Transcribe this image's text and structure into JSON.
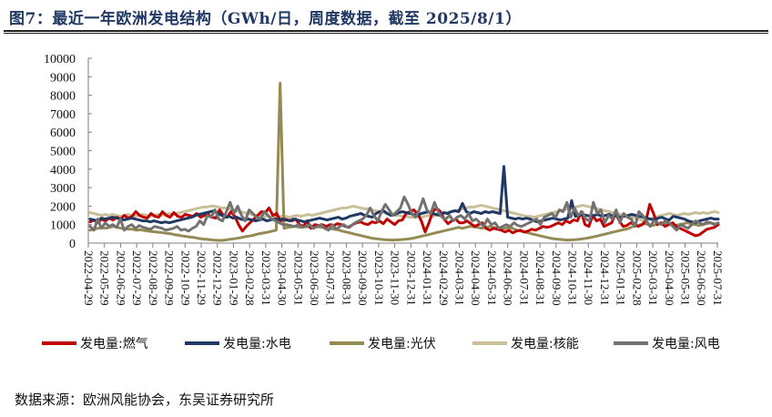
{
  "header": {
    "title": "图7：最近一年欧洲发电结构（GWh/日，周度数据，截至 2025/8/1）"
  },
  "source": {
    "text": "数据来源：欧洲风能协会，东吴证券研究所"
  },
  "chart_data": {
    "type": "line",
    "title": "最近一年欧洲发电结构（GWh/日，周度数据，截至 2025/8/1）",
    "xlabel": "",
    "ylabel": "GWh/日",
    "ylim": [
      0,
      10000
    ],
    "yticks": [
      0,
      1000,
      2000,
      3000,
      4000,
      5000,
      6000,
      7000,
      8000,
      9000,
      10000
    ],
    "grid": false,
    "legend_position": "bottom",
    "x_tick_labels": [
      "2022-04-29",
      "2022-05-29",
      "2022-06-29",
      "2022-07-29",
      "2022-08-29",
      "2022-09-29",
      "2022-10-29",
      "2022-11-29",
      "2022-12-29",
      "2023-01-29",
      "2023-02-28",
      "2023-03-31",
      "2023-04-30",
      "2023-05-31",
      "2023-06-30",
      "2023-07-31",
      "2023-08-31",
      "2023-09-30",
      "2023-10-31",
      "2023-11-30",
      "2023-12-31",
      "2024-01-31",
      "2024-02-29",
      "2024-03-31",
      "2024-04-30",
      "2024-05-31",
      "2024-06-30",
      "2024-07-31",
      "2024-08-31",
      "2024-09-30",
      "2024-10-31",
      "2024-11-30",
      "2024-12-31",
      "2025-01-31",
      "2025-02-28",
      "2025-03-31",
      "2025-04-30",
      "2025-05-31",
      "2025-06-30",
      "2025-07-31"
    ],
    "x_start": "2022-04-29",
    "x_end": "2025-08-01",
    "frequency": "weekly",
    "series": [
      {
        "name": "发电量:燃气",
        "color": "#c00000",
        "values": [
          1150,
          1250,
          1100,
          1300,
          1200,
          1350,
          1250,
          1400,
          1300,
          1500,
          1350,
          1450,
          1700,
          1500,
          1400,
          1350,
          1600,
          1450,
          1400,
          1700,
          1500,
          1400,
          1650,
          1450,
          1400,
          1550,
          1500,
          1450,
          1600,
          1400,
          1500,
          1550,
          1400,
          1350,
          1800,
          1500,
          1400,
          1700,
          1450,
          1000,
          650,
          900,
          1100,
          1300,
          1500,
          1700,
          1650,
          1900,
          1500,
          1600,
          1200,
          1300,
          1250,
          1200,
          1300,
          1000,
          900,
          1200,
          800,
          1000,
          950,
          1000,
          900,
          1000,
          950,
          1050,
          1000,
          900,
          850,
          1000,
          1100,
          1150,
          1050,
          1000,
          1150,
          1100,
          1200,
          1050,
          1300,
          1150,
          1000,
          1200,
          1250,
          1600,
          1700,
          1800,
          1600,
          1200,
          600,
          1100,
          1700,
          1900,
          1700,
          1300,
          1050,
          1200,
          1300,
          1100,
          1100,
          1200,
          1050,
          900,
          1000,
          1100,
          800,
          700,
          800,
          750,
          700,
          600,
          700,
          550,
          650,
          700,
          600,
          650,
          750,
          700,
          800,
          900,
          850,
          900,
          1000,
          1100,
          1000,
          1200,
          1100,
          1250,
          1200,
          1700,
          1000,
          900,
          1500,
          1200,
          1300,
          900,
          1000,
          1100,
          1600,
          1200,
          900,
          950,
          1100,
          1000,
          900,
          1000,
          1200,
          2100,
          1600,
          1000,
          1100,
          900,
          1000,
          1100,
          900,
          800,
          700,
          600,
          500,
          400,
          450,
          600,
          750,
          800,
          850,
          1000
        ],
        "label_note": "weekly values read approx. from plot"
      },
      {
        "name": "发电量:水电",
        "color": "#1f3864",
        "values": [
          1300,
          1250,
          1200,
          1350,
          1300,
          1350,
          1400,
          1350,
          1300,
          1250,
          1300,
          1350,
          1300,
          1250,
          1200,
          1200,
          1150,
          1200,
          1150,
          1100,
          1150,
          1100,
          1150,
          1200,
          1250,
          1300,
          1350,
          1400,
          1500,
          1550,
          1600,
          1650,
          1700,
          1750,
          1600,
          1500,
          1400,
          1450,
          1350,
          1400,
          1300,
          1250,
          1300,
          1250,
          1200,
          1250,
          1300,
          1200,
          1250,
          1300,
          1250,
          1300,
          1250,
          1200,
          1300,
          1250,
          1200,
          1150,
          1200,
          1250,
          1300,
          1350,
          1300,
          1250,
          1300,
          1350,
          1400,
          1300,
          1350,
          1450,
          1500,
          1550,
          1600,
          1500,
          1450,
          1400,
          1600,
          1700,
          1750,
          1600,
          1500,
          1550,
          1650,
          1700,
          1650,
          1600,
          1550,
          1500,
          1600,
          1650,
          1700,
          1600,
          1550,
          1500,
          1650,
          1600,
          1700,
          1750,
          1700,
          2150,
          1700,
          1600,
          1700,
          1650,
          1600,
          1700,
          1650,
          1700,
          1650,
          1600,
          4150,
          1400,
          1350,
          1300,
          1350,
          1300,
          1350,
          1300,
          1200,
          1150,
          1200,
          1250,
          1300,
          1350,
          1300,
          1250,
          1300,
          1350,
          2300,
          1450,
          1500,
          1550,
          1500,
          1450,
          1500,
          1550,
          1450,
          1500,
          1550,
          1450,
          1500,
          1400,
          1450,
          1500,
          1550,
          1500,
          1450,
          1400,
          1350,
          1300,
          1250,
          1350,
          1400,
          1300,
          1250,
          1450,
          1400,
          1350,
          1300,
          1200,
          1150,
          1100,
          1200,
          1250,
          1300,
          1350,
          1300,
          1300
        ],
        "label_note": "weekly values read approx. from plot"
      },
      {
        "name": "发电量:光伏",
        "color": "#948a54",
        "values": [
          700,
          750,
          800,
          850,
          800,
          850,
          900,
          850,
          800,
          780,
          760,
          750,
          700,
          720,
          680,
          650,
          620,
          600,
          580,
          550,
          520,
          500,
          450,
          420,
          380,
          350,
          320,
          300,
          250,
          220,
          200,
          180,
          160,
          150,
          150,
          170,
          200,
          230,
          260,
          300,
          350,
          380,
          420,
          480,
          520,
          560,
          600,
          650,
          700,
          8650,
          800,
          850,
          880,
          900,
          850,
          900,
          880,
          850,
          900,
          870,
          850,
          800,
          780,
          750,
          720,
          650,
          600,
          550,
          500,
          450,
          400,
          350,
          300,
          250,
          230,
          200,
          180,
          170,
          160,
          170,
          180,
          200,
          220,
          250,
          300,
          350,
          400,
          450,
          500,
          550,
          600,
          650,
          700,
          750,
          800,
          850,
          800,
          850,
          900,
          880,
          850,
          800,
          850,
          900,
          850,
          800,
          750,
          800,
          850,
          800,
          700,
          650,
          600,
          550,
          500,
          450,
          400,
          350,
          300,
          250,
          220,
          200,
          180,
          160,
          170,
          180,
          200,
          230,
          260,
          300,
          350,
          400,
          450,
          500,
          550,
          600,
          650,
          700,
          750,
          800,
          900,
          950,
          1000,
          1050,
          1000,
          950,
          1000,
          1050,
          1100,
          1050,
          1000,
          950,
          1000,
          1050,
          1100,
          1050,
          1000,
          950,
          1000,
          1050,
          1100,
          1050,
          1000
        ],
        "label_note": "weekly values read approx. from plot"
      },
      {
        "name": "发电量:核能",
        "color": "#c9bf99",
        "values": [
          1650,
          1600,
          1550,
          1500,
          1550,
          1500,
          1550,
          1500,
          1450,
          1500,
          1550,
          1500,
          1450,
          1500,
          1550,
          1500,
          1450,
          1500,
          1550,
          1500,
          1550,
          1600,
          1550,
          1600,
          1650,
          1700,
          1750,
          1800,
          1850,
          1900,
          1950,
          1950,
          2000,
          2000,
          1950,
          1900,
          1900,
          1850,
          1800,
          1750,
          1700,
          1650,
          1600,
          1550,
          1500,
          1500,
          1450,
          1450,
          1400,
          1450,
          1400,
          1450,
          1450,
          1400,
          1450,
          1500,
          1450,
          1500,
          1550,
          1500,
          1550,
          1600,
          1650,
          1700,
          1750,
          1800,
          1850,
          1900,
          1900,
          1950,
          2000,
          1950,
          1900,
          1850,
          1850,
          1800,
          1750,
          1700,
          1650,
          1600,
          1550,
          1500,
          1500,
          1450,
          1450,
          1400,
          1400,
          1450,
          1400,
          1450,
          1500,
          1450,
          1500,
          1550,
          1600,
          1650,
          1700,
          1750,
          1800,
          1850,
          1900,
          1950,
          1950,
          2000,
          2050,
          2000,
          1950,
          1900,
          1850,
          1800,
          1750,
          1700,
          1650,
          1600,
          1550,
          1500,
          1450,
          1450,
          1400,
          1450,
          1500,
          1550,
          1600,
          1650,
          1700,
          1750,
          1800,
          1850,
          1900,
          1950,
          2000,
          2050,
          2000,
          1950,
          1900,
          1850,
          1800,
          1750,
          1700,
          1650,
          1600,
          1550,
          1500,
          1450,
          1400,
          1350,
          1300,
          1200,
          1250,
          1300,
          1400,
          1450,
          1500,
          1550,
          1600,
          1550,
          1500,
          1550,
          1600,
          1550,
          1600,
          1650,
          1600,
          1650,
          1600,
          1650,
          1700,
          1650
        ],
        "label_note": "weekly values read approx. from plot"
      },
      {
        "name": "发电量:风电",
        "color": "#767171",
        "values": [
          900,
          700,
          1300,
          800,
          1100,
          900,
          1000,
          850,
          1300,
          700,
          900,
          1000,
          800,
          950,
          850,
          800,
          750,
          900,
          850,
          800,
          700,
          750,
          800,
          900,
          700,
          750,
          650,
          800,
          900,
          1200,
          1000,
          1500,
          1400,
          1800,
          1300,
          1200,
          1700,
          2200,
          1600,
          2000,
          1500,
          1200,
          1800,
          1600,
          1400,
          1300,
          1700,
          1500,
          1300,
          1200,
          1100,
          1000,
          1000,
          950,
          900,
          1000,
          850,
          900,
          1000,
          800,
          900,
          1000,
          800,
          700,
          1000,
          750,
          900,
          1000,
          850,
          950,
          1100,
          1200,
          1300,
          1500,
          1900,
          1500,
          1200,
          1700,
          2100,
          1800,
          1500,
          1700,
          1900,
          2500,
          2100,
          1600,
          1400,
          1800,
          2400,
          1800,
          1600,
          2200,
          1700,
          1400,
          1300,
          1500,
          1200,
          1400,
          1500,
          1300,
          1600,
          1200,
          1300,
          1100,
          900,
          1300,
          1000,
          1100,
          800,
          900,
          1000,
          900,
          1100,
          950,
          900,
          1000,
          1100,
          1200,
          1300,
          1000,
          1400,
          1500,
          1600,
          1400,
          1800,
          1700,
          2200,
          1400,
          1900,
          1500,
          1700,
          1300,
          1200,
          2200,
          1600,
          1800,
          1100,
          1500,
          1300,
          1800,
          1100,
          1600,
          1400,
          1300,
          900,
          1700,
          1500,
          1200,
          900,
          1200,
          1100,
          1000,
          1200,
          1100,
          900,
          700,
          1000,
          900,
          800,
          1000,
          1200,
          1100,
          1000,
          1150,
          1100,
          1000,
          1100
        ],
        "label_note": "weekly values read approx. from plot"
      }
    ]
  },
  "legend": {
    "items": [
      {
        "label": "发电量:燃气",
        "color": "#c00000"
      },
      {
        "label": "发电量:水电",
        "color": "#1f3864"
      },
      {
        "label": "发电量:光伏",
        "color": "#948a54"
      },
      {
        "label": "发电量:核能",
        "color": "#c9bf99"
      },
      {
        "label": "发电量:风电",
        "color": "#767171"
      }
    ]
  },
  "yaxis": {
    "ticks": [
      "0",
      "1000",
      "2000",
      "3000",
      "4000",
      "5000",
      "6000",
      "7000",
      "8000",
      "9000",
      "10000"
    ]
  }
}
